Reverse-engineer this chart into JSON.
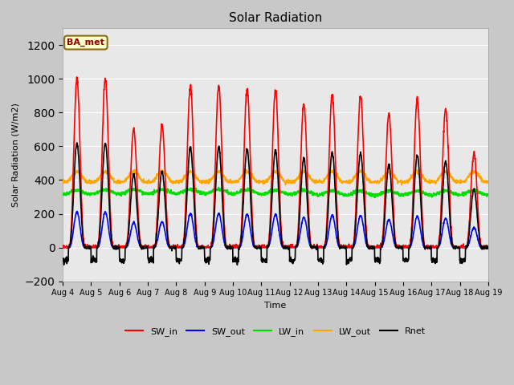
{
  "title": "Solar Radiation",
  "xlabel": "Time",
  "ylabel": "Solar Radiation (W/m2)",
  "ylim": [
    -200,
    1300
  ],
  "yticks": [
    -200,
    0,
    200,
    400,
    600,
    800,
    1000,
    1200
  ],
  "fig_facecolor": "#c8c8c8",
  "plot_facecolor": "#e8e8e8",
  "annotation_text": "BA_met",
  "annotation_facecolor": "#ffffcc",
  "annotation_edgecolor": "#8b6914",
  "annotation_textcolor": "#8b0000",
  "series": {
    "SW_in": {
      "color": "#ff0000",
      "lw": 1.2
    },
    "SW_out": {
      "color": "#0000ff",
      "lw": 1.2
    },
    "LW_in": {
      "color": "#00dd00",
      "lw": 1.2
    },
    "LW_out": {
      "color": "#ffa500",
      "lw": 1.2
    },
    "Rnet": {
      "color": "#000000",
      "lw": 1.2
    }
  },
  "xtick_labels": [
    "Aug 4",
    "Aug 5",
    "Aug 6",
    "Aug 7",
    "Aug 8",
    "Aug 9",
    "Aug 10",
    "Aug 11",
    "Aug 12",
    "Aug 13",
    "Aug 14",
    "Aug 15",
    "Aug 16",
    "Aug 17",
    "Aug 18",
    "Aug 19"
  ],
  "n_days": 15,
  "pts_per_day": 144,
  "sw_in_peaks": [
    1000,
    1000,
    700,
    730,
    960,
    960,
    940,
    930,
    850,
    910,
    900,
    790,
    880,
    820,
    560
  ]
}
